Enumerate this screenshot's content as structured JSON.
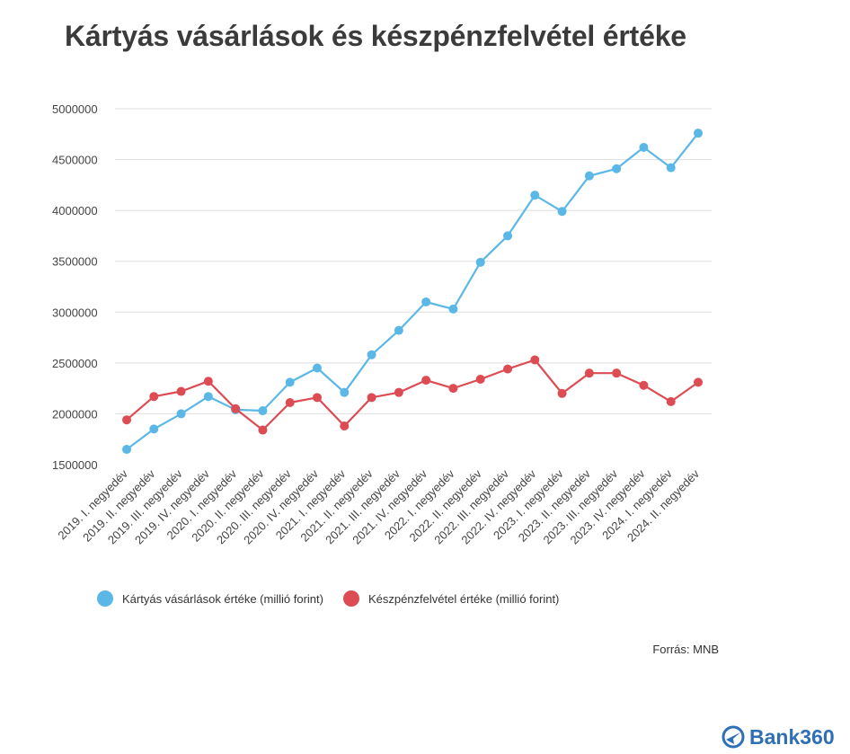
{
  "title": "Kártyás vásárlások és készpénzfelvétel értéke",
  "source": "Forrás: MNB",
  "logo_text": "Bank360",
  "colors": {
    "card": "#5bb8e6",
    "cash": "#dd4b53",
    "grid": "#dedede"
  },
  "chart_data": {
    "type": "line",
    "title": "Kártyás vásárlások és készpénzfelvétel értéke",
    "xlabel": "",
    "ylabel": "",
    "ylim": [
      1500000,
      5000000
    ],
    "yticks": [
      1500000,
      2000000,
      2500000,
      3000000,
      3500000,
      4000000,
      4500000,
      5000000
    ],
    "grid": true,
    "legend_position": "bottom",
    "categories": [
      "2019. I. negyedév",
      "2019. II. negyedév",
      "2019. III. negyedév",
      "2019. IV. negyedév",
      "2020. I. negyedév",
      "2020. II. negyedév",
      "2020. III. negyedév",
      "2020. IV. negyedév",
      "2021. I. negyedév",
      "2021. II. negyedév",
      "2021. III. negyedév",
      "2021. IV. negyedév",
      "2022. I. negyedév",
      "2022. II. negyedév",
      "2022. III. negyedév",
      "2022. IV. negyedév",
      "2023. I. negyedév",
      "2023. II. negyedév",
      "2023. III. negyedév",
      "2023. IV. negyedév",
      "2024. I. negyedév",
      "2024. II. negyedév"
    ],
    "series": [
      {
        "name": "Kártyás vásárlások értéke (millió forint)",
        "color": "#5bb8e6",
        "values": [
          1650000,
          1850000,
          2000000,
          2170000,
          2040000,
          2030000,
          2310000,
          2450000,
          2210000,
          2580000,
          2820000,
          3100000,
          3030000,
          3490000,
          3750000,
          4150000,
          3990000,
          4340000,
          4410000,
          4620000,
          4420000,
          4760000
        ]
      },
      {
        "name": "Készpénzfelvétel értéke (millió forint)",
        "color": "#dd4b53",
        "values": [
          1940000,
          2170000,
          2220000,
          2320000,
          2050000,
          1840000,
          2110000,
          2160000,
          1880000,
          2160000,
          2210000,
          2330000,
          2250000,
          2340000,
          2440000,
          2530000,
          2200000,
          2400000,
          2400000,
          2280000,
          2120000,
          2310000
        ]
      }
    ]
  }
}
